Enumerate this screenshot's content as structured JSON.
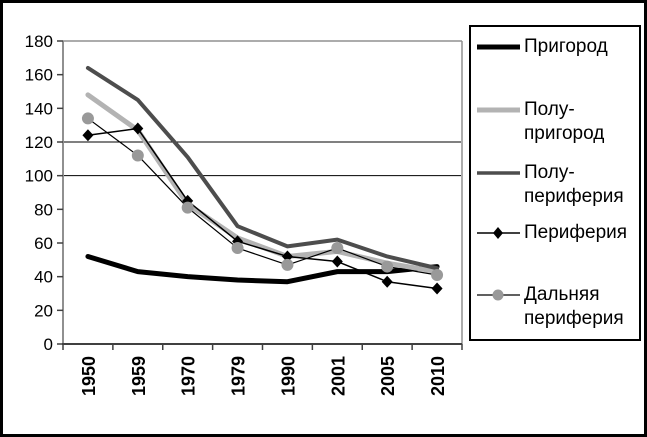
{
  "legend": {
    "items": [
      {
        "label": "Пригород",
        "sample": "thick-black-line"
      },
      {
        "label": "Полу-\nпригород",
        "sample": "thick-lightgray-line"
      },
      {
        "label": "Полу-\nпериферия",
        "sample": "darkgray-line"
      },
      {
        "label": "Периферия",
        "sample": "thin-line-black-diamond"
      },
      {
        "label": "Дальняя\nпериферия",
        "sample": "thin-line-gray-circle"
      }
    ]
  },
  "colors": {
    "thick_black": "#000000",
    "light_gray": "#b3b3b3",
    "dark_gray": "#4d4d4d",
    "marker_gray": "#999999",
    "axis_gray": "#909090",
    "gridline": "#000000"
  },
  "chart_data": {
    "type": "line",
    "title": "",
    "xlabel": "",
    "ylabel": "",
    "categories": [
      "1950",
      "1959",
      "1970",
      "1979",
      "1990",
      "2001",
      "2005",
      "2010"
    ],
    "series": [
      {
        "name": "Пригород",
        "color": "#000000",
        "width": 5,
        "marker": "none",
        "marker_color": null,
        "values": [
          52,
          43,
          40,
          38,
          37,
          43,
          43,
          46
        ]
      },
      {
        "name": "Полу-пригород",
        "color": "#b3b3b3",
        "width": 5,
        "marker": "none",
        "marker_color": null,
        "values": [
          148,
          127,
          83,
          63,
          52,
          55,
          48,
          43
        ]
      },
      {
        "name": "Полу-периферия",
        "color": "#4d4d4d",
        "width": 4,
        "marker": "none",
        "marker_color": null,
        "values": [
          164,
          145,
          111,
          70,
          58,
          62,
          52,
          45
        ]
      },
      {
        "name": "Периферия",
        "color": "#000000",
        "width": 1.5,
        "marker": "diamond",
        "marker_color": "#000000",
        "values": [
          124,
          128,
          85,
          61,
          52,
          49,
          37,
          33
        ]
      },
      {
        "name": "Дальняя периферия",
        "color": "#000000",
        "width": 1.2,
        "marker": "circle",
        "marker_color": "#999999",
        "values": [
          134,
          112,
          81,
          57,
          47,
          57,
          46,
          41
        ]
      }
    ],
    "ylim": [
      0,
      180
    ],
    "yticks": [
      0,
      20,
      40,
      60,
      80,
      100,
      120,
      140,
      160,
      180
    ],
    "gridlines_y": [
      100,
      120
    ],
    "grid": "partial-horizontal",
    "legend_position": "right",
    "x_tick_label_rotation_deg": 90
  }
}
